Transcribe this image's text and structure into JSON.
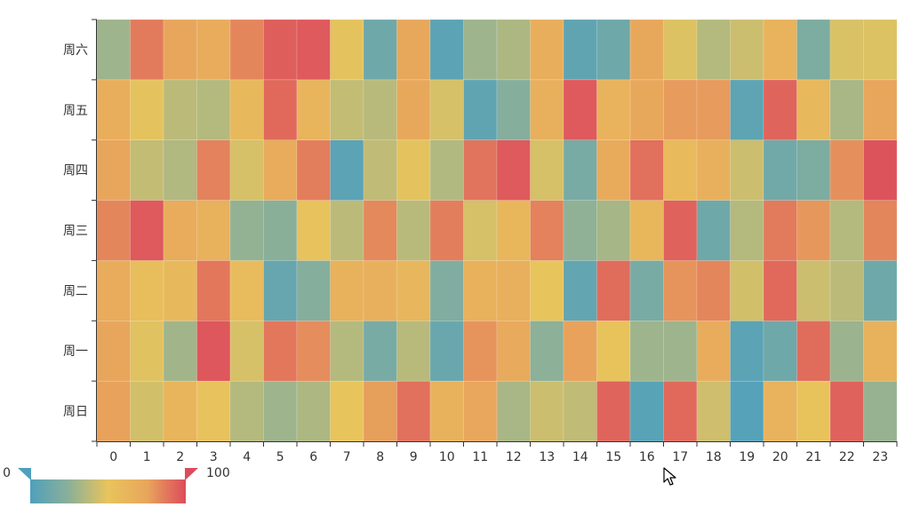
{
  "chart_data": {
    "type": "heatmap",
    "title": "",
    "xlabel": "",
    "ylabel": "",
    "x_categories": [
      "0",
      "1",
      "2",
      "3",
      "4",
      "5",
      "6",
      "7",
      "8",
      "9",
      "10",
      "11",
      "12",
      "13",
      "14",
      "15",
      "16",
      "17",
      "18",
      "19",
      "20",
      "21",
      "22",
      "23"
    ],
    "y_categories": [
      "周日",
      "周一",
      "周二",
      "周三",
      "周四",
      "周五",
      "周六"
    ],
    "value_range": [
      0,
      100
    ],
    "visual_map": {
      "min_label": "0",
      "max_label": "100"
    },
    "colors": [
      "#4fa0bc",
      "#8cb098",
      "#e8c45c",
      "#e8a65c",
      "#dc4c5c"
    ],
    "values": [
      [
        76,
        44,
        63,
        52,
        36,
        30,
        34,
        50,
        77,
        90,
        65,
        74,
        33,
        42,
        39,
        93,
        4,
        92,
        43,
        3,
        64,
        51,
        94,
        28
      ],
      [
        75,
        48,
        31,
        97,
        45,
        88,
        82,
        36,
        17,
        37,
        11,
        80,
        72,
        25,
        76,
        51,
        30,
        30,
        70,
        5,
        13,
        91,
        29,
        66
      ],
      [
        70,
        56,
        59,
        88,
        57,
        10,
        22,
        66,
        67,
        62,
        20,
        66,
        67,
        50,
        8,
        91,
        17,
        80,
        84,
        44,
        92,
        42,
        38,
        13
      ],
      [
        84,
        96,
        70,
        66,
        27,
        24,
        52,
        38,
        83,
        37,
        86,
        45,
        61,
        85,
        26,
        32,
        61,
        94,
        13,
        36,
        87,
        79,
        36,
        84
      ],
      [
        75,
        40,
        35,
        85,
        45,
        70,
        86,
        5,
        39,
        49,
        35,
        89,
        96,
        45,
        17,
        71,
        90,
        58,
        67,
        42,
        14,
        19,
        81,
        98
      ],
      [
        68,
        49,
        38,
        36,
        60,
        92,
        63,
        40,
        37,
        73,
        45,
        7,
        22,
        67,
        96,
        64,
        73,
        78,
        78,
        6,
        93,
        60,
        33,
        75
      ],
      [
        30,
        87,
        75,
        70,
        84,
        95,
        96,
        49,
        13,
        73,
        5,
        30,
        34,
        68,
        7,
        13,
        73,
        47,
        36,
        42,
        64,
        19,
        46,
        47
      ]
    ]
  }
}
